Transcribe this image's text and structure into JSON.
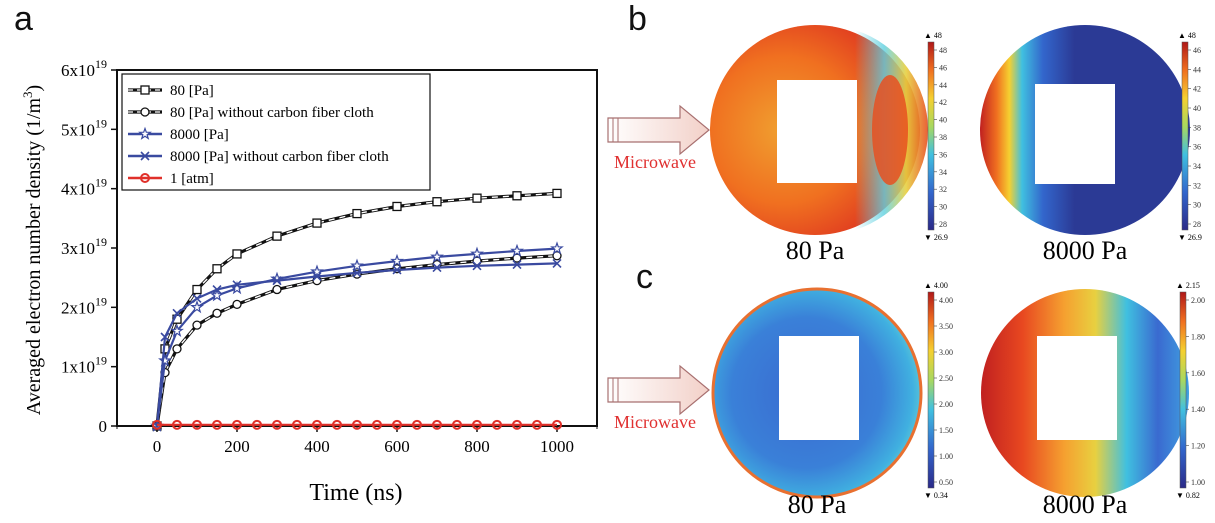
{
  "panels": {
    "a": "a",
    "b": "b",
    "c": "c"
  },
  "chart_data": {
    "type": "line",
    "xlabel": "Time (ns)",
    "ylabel": "Averaged electron number density (1/m",
    "ylabel_sup": "3",
    "ylabel_tail": ")",
    "xlim": [
      -100,
      1100
    ],
    "ylim": [
      0,
      6
    ],
    "y_scale_label": "×10^19",
    "xticks": [
      0,
      200,
      400,
      600,
      800,
      1000
    ],
    "yticks": [
      {
        "v": 0,
        "base": "0",
        "exp": ""
      },
      {
        "v": 1,
        "base": "1x10",
        "exp": "19"
      },
      {
        "v": 2,
        "base": "2x10",
        "exp": "19"
      },
      {
        "v": 3,
        "base": "3x10",
        "exp": "19"
      },
      {
        "v": 4,
        "base": "4x10",
        "exp": "19"
      },
      {
        "v": 5,
        "base": "5x10",
        "exp": "19"
      },
      {
        "v": 6,
        "base": "6x10",
        "exp": "19"
      }
    ],
    "legend_position": "top-left",
    "series": [
      {
        "name": "80 [Pa]",
        "color": "#111111",
        "dash": true,
        "marker": "square",
        "x": [
          0,
          20,
          50,
          100,
          150,
          200,
          300,
          400,
          500,
          600,
          700,
          800,
          900,
          1000
        ],
        "y": [
          0,
          1.3,
          1.8,
          2.3,
          2.65,
          2.9,
          3.2,
          3.42,
          3.58,
          3.7,
          3.78,
          3.84,
          3.88,
          3.92
        ]
      },
      {
        "name": "80 [Pa] without carbon fiber cloth",
        "color": "#111111",
        "dash": true,
        "marker": "circle",
        "x": [
          0,
          20,
          50,
          100,
          150,
          200,
          300,
          400,
          500,
          600,
          700,
          800,
          900,
          1000
        ],
        "y": [
          0,
          0.9,
          1.3,
          1.7,
          1.9,
          2.05,
          2.3,
          2.45,
          2.56,
          2.65,
          2.72,
          2.78,
          2.83,
          2.87
        ]
      },
      {
        "name": "8000 [Pa]",
        "color": "#3a4aa0",
        "dash": false,
        "marker": "star",
        "x": [
          0,
          20,
          50,
          100,
          150,
          200,
          300,
          400,
          500,
          600,
          700,
          800,
          900,
          1000
        ],
        "y": [
          0,
          1.1,
          1.6,
          2.0,
          2.2,
          2.32,
          2.48,
          2.6,
          2.7,
          2.78,
          2.85,
          2.9,
          2.95,
          2.99
        ]
      },
      {
        "name": "8000 [Pa] without carbon fiber cloth",
        "color": "#3a4aa0",
        "dash": false,
        "marker": "x",
        "x": [
          0,
          20,
          50,
          100,
          150,
          200,
          300,
          400,
          500,
          600,
          700,
          800,
          900,
          1000
        ],
        "y": [
          0,
          1.5,
          1.9,
          2.15,
          2.3,
          2.38,
          2.45,
          2.52,
          2.58,
          2.63,
          2.67,
          2.7,
          2.72,
          2.74
        ]
      },
      {
        "name": "1 [atm]",
        "color": "#e0302a",
        "dash": false,
        "marker": "circle-open",
        "x": [
          0,
          50,
          100,
          150,
          200,
          250,
          300,
          350,
          400,
          450,
          500,
          550,
          600,
          650,
          700,
          750,
          800,
          850,
          900,
          950,
          1000
        ],
        "y": [
          0.02,
          0.02,
          0.02,
          0.02,
          0.02,
          0.02,
          0.02,
          0.02,
          0.02,
          0.02,
          0.02,
          0.02,
          0.02,
          0.02,
          0.02,
          0.02,
          0.02,
          0.02,
          0.02,
          0.02,
          0.02
        ]
      }
    ]
  },
  "maps": {
    "arrow_label": "Microwave",
    "b": {
      "left_label": "80 Pa",
      "right_label": "8000 Pa",
      "left_colorbar": {
        "max": "48",
        "min": "26.9",
        "ticks": [
          "48",
          "46",
          "44",
          "42",
          "40",
          "38",
          "36",
          "34",
          "32",
          "30",
          "28"
        ]
      },
      "right_colorbar": {
        "max": "48",
        "min": "26.9",
        "ticks": [
          "46",
          "44",
          "42",
          "40",
          "38",
          "36",
          "34",
          "32",
          "30",
          "28"
        ]
      }
    },
    "c": {
      "left_label": "80 Pa",
      "right_label": "8000 Pa",
      "left_colorbar": {
        "max": "4.00",
        "min": "0.34",
        "ticks": [
          "4.00",
          "3.50",
          "3.00",
          "2.50",
          "2.00",
          "1.50",
          "1.00",
          "0.50"
        ]
      },
      "right_colorbar": {
        "max": "2.15",
        "min": "0.82",
        "ticks": [
          "2.00",
          "1.80",
          "1.60",
          "1.40",
          "1.20",
          "1.00"
        ]
      }
    }
  }
}
